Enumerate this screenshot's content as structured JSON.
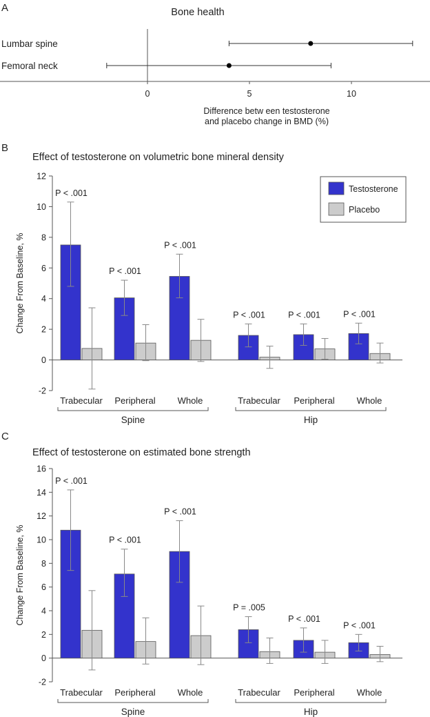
{
  "chart_data": [
    {
      "panel": "A",
      "type": "scatter",
      "title": "Bone health",
      "xlabel_lines": [
        "Difference betw een testosterone",
        "and placebo change in BMD (%)"
      ],
      "xlim": [
        -7,
        14
      ],
      "xticks": [
        0,
        5,
        10
      ],
      "rows": [
        {
          "label": "Lumbar spine",
          "estimate": 8.0,
          "ci": [
            4.0,
            13.0
          ]
        },
        {
          "label": "Femoral neck",
          "estimate": 4.0,
          "ci": [
            -2.0,
            9.0
          ]
        }
      ]
    },
    {
      "panel": "B",
      "type": "bar",
      "title": "Effect of testosterone on volumetric bone mineral density",
      "ylabel": "Change From Baseline, %",
      "ylim": [
        -2,
        12
      ],
      "yticks": [
        -2,
        0,
        2,
        4,
        6,
        8,
        10,
        12
      ],
      "legend": {
        "position": "top-right",
        "entries": [
          "Testosterone",
          "Placebo"
        ]
      },
      "groups": [
        "Spine",
        "Hip"
      ],
      "categories": [
        "Trabecular",
        "Peripheral",
        "Whole",
        "Trabecular",
        "Peripheral",
        "Whole"
      ],
      "p_values": [
        "P < .001",
        "P < .001",
        "P < .001",
        "P < .001",
        "P < .001",
        "P < .001"
      ],
      "series": [
        {
          "name": "Testosterone",
          "color": "#3333cc",
          "values": [
            7.5,
            4.05,
            5.45,
            1.6,
            1.65,
            1.72
          ],
          "err_low": [
            4.8,
            2.9,
            4.05,
            0.85,
            0.95,
            1.05
          ],
          "err_high": [
            10.3,
            5.2,
            6.9,
            2.35,
            2.35,
            2.4
          ]
        },
        {
          "name": "Placebo",
          "color": "#cccccc",
          "values": [
            0.75,
            1.1,
            1.28,
            0.18,
            0.72,
            0.42
          ],
          "err_low": [
            -1.9,
            -0.05,
            -0.1,
            -0.55,
            0.05,
            -0.2
          ],
          "err_high": [
            3.4,
            2.3,
            2.65,
            0.9,
            1.4,
            1.1
          ]
        }
      ]
    },
    {
      "panel": "C",
      "type": "bar",
      "title": "Effect of testosterone on estimated bone strength",
      "ylabel": "Change From Baseline, %",
      "ylim": [
        -2,
        16
      ],
      "yticks": [
        -2,
        0,
        2,
        4,
        6,
        8,
        10,
        12,
        14,
        16
      ],
      "groups": [
        "Spine",
        "Hip"
      ],
      "categories": [
        "Trabecular",
        "Peripheral",
        "Whole",
        "Trabecular",
        "Peripheral",
        "Whole"
      ],
      "p_values": [
        "P < .001",
        "P < .001",
        "P < .001",
        "P = .005",
        "P < .001",
        "P < .001"
      ],
      "series": [
        {
          "name": "Testosterone",
          "color": "#3333cc",
          "values": [
            10.8,
            7.1,
            9.0,
            2.4,
            1.5,
            1.3
          ],
          "err_low": [
            7.4,
            5.2,
            6.4,
            1.3,
            0.5,
            0.6
          ],
          "err_high": [
            14.2,
            9.2,
            11.6,
            3.5,
            2.55,
            2.0
          ]
        },
        {
          "name": "Placebo",
          "color": "#cccccc",
          "values": [
            2.35,
            1.4,
            1.9,
            0.55,
            0.5,
            0.3
          ],
          "err_low": [
            -1.0,
            -0.5,
            -0.55,
            -0.45,
            -0.45,
            -0.3
          ],
          "err_high": [
            5.7,
            3.4,
            4.4,
            1.7,
            1.5,
            1.0
          ]
        }
      ]
    }
  ]
}
